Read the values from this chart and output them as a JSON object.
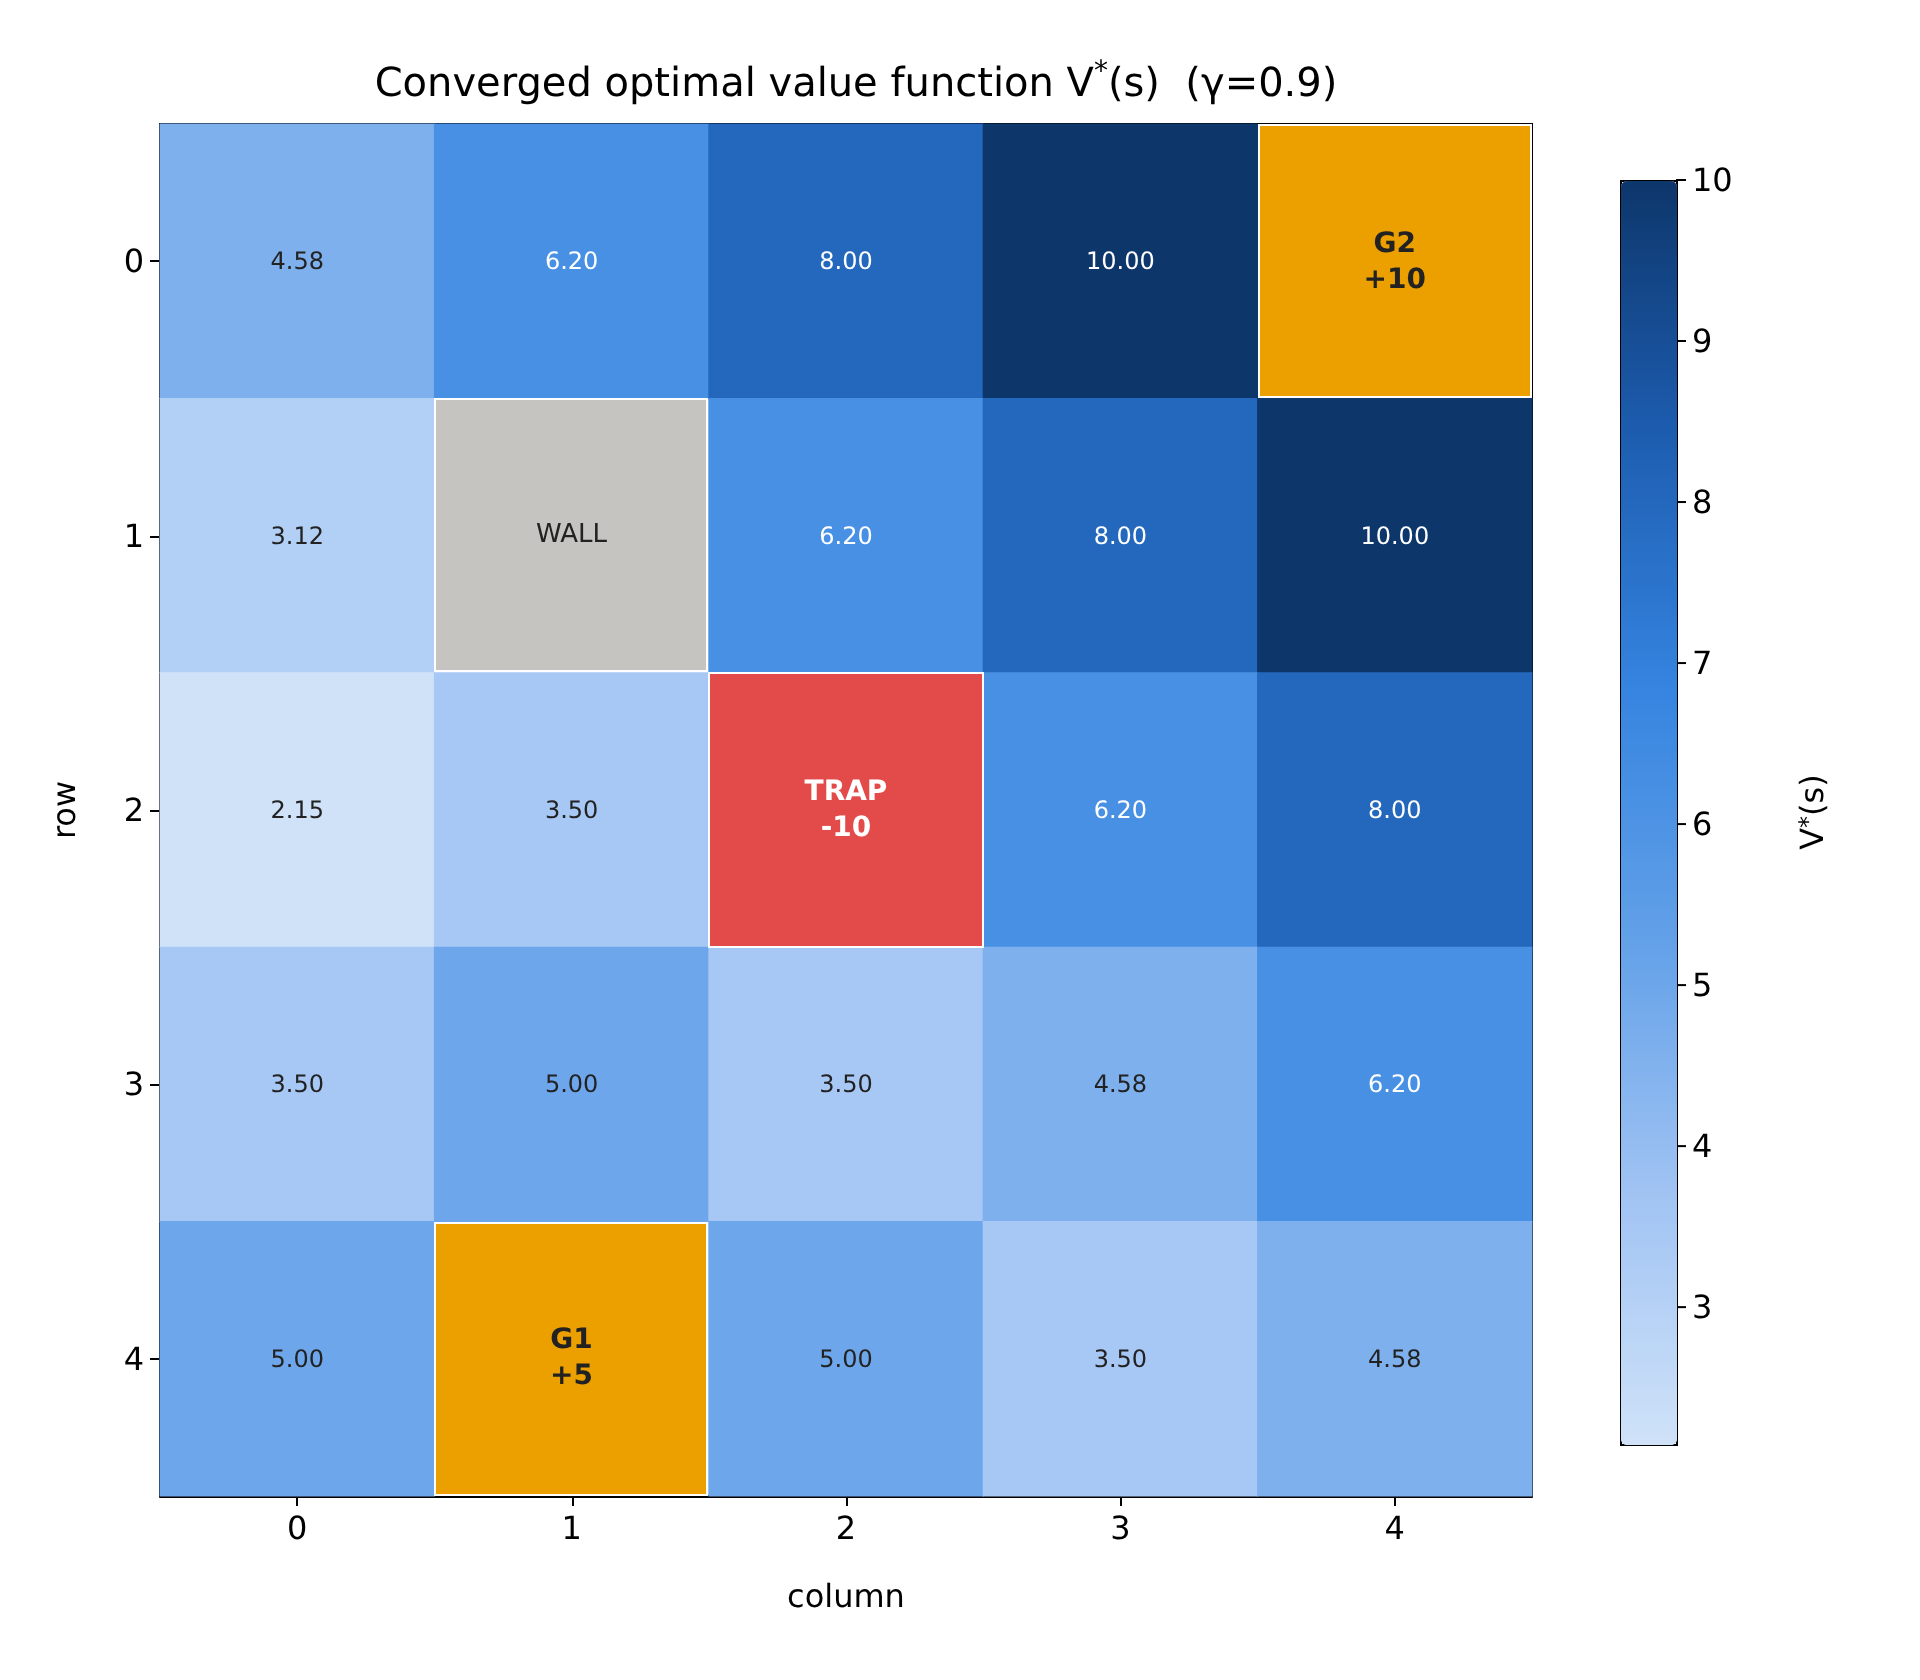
{
  "chart_data": {
    "type": "heatmap",
    "title": "Converged optimal value function V$^{*}$(s)  (γ=0.9)",
    "xlabel": "column",
    "ylabel": "row",
    "clabel": "V$^{*}$(s)",
    "categories": [
      "0",
      "1",
      "2",
      "3",
      "4"
    ],
    "y_categories": [
      "0",
      "1",
      "2",
      "3",
      "4"
    ],
    "cells": [
      [
        4.58,
        6.2,
        8.0,
        10.0,
        null
      ],
      [
        3.12,
        null,
        6.2,
        8.0,
        10.0
      ],
      [
        2.15,
        3.5,
        null,
        6.2,
        8.0
      ],
      [
        3.5,
        5.0,
        3.5,
        4.58,
        6.2
      ],
      [
        5.0,
        null,
        5.0,
        3.5,
        4.58
      ]
    ],
    "cell_labels": [
      [
        "4.58",
        "6.20",
        "8.00",
        "10.00",
        "G2\n+10"
      ],
      [
        "3.12",
        "WALL",
        "6.20",
        "8.00",
        "10.00"
      ],
      [
        "2.15",
        "3.50",
        "TRAP\n-10",
        "6.20",
        "8.00"
      ],
      [
        "3.50",
        "5.00",
        "3.50",
        "4.58",
        "6.20"
      ],
      [
        "5.00",
        "G1\n+5",
        "5.00",
        "3.50",
        "4.58"
      ]
    ],
    "colors": [
      [
        null,
        null,
        null,
        null,
        "#eba000"
      ],
      [
        null,
        "#c5c4c0",
        null,
        null,
        null
      ],
      [
        null,
        null,
        "#e34a4a",
        null,
        null
      ],
      [
        null,
        null,
        null,
        null,
        null
      ],
      [
        null,
        "#eba000",
        null,
        null,
        null
      ]
    ],
    "clim": [
      2.15,
      10
    ],
    "cticks": [
      3,
      4,
      5,
      6,
      7,
      8,
      9,
      10
    ],
    "grid": false
  }
}
